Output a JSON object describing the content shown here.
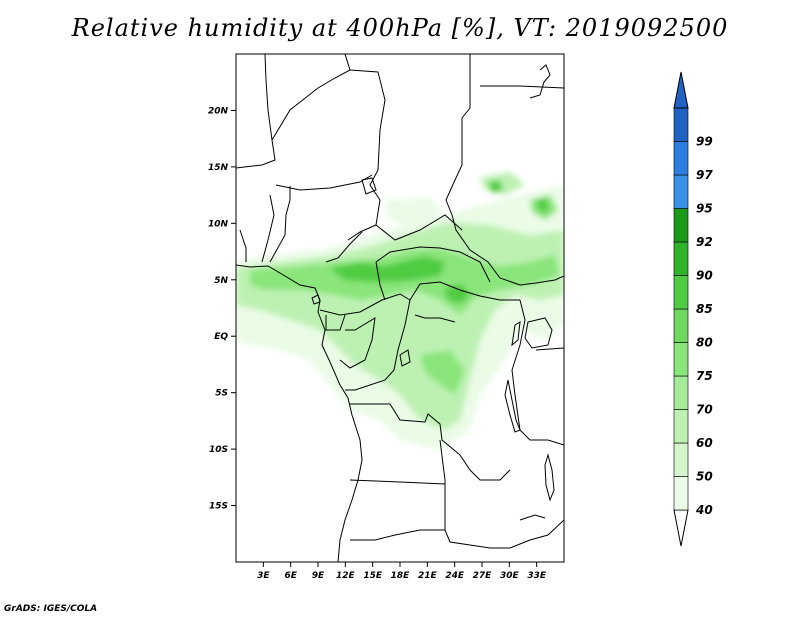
{
  "title": "Relative humidity at 400hPa [%], VT: 2019092500",
  "credit": "GrADS: IGES/COLA",
  "map": {
    "lon_range": [
      0,
      36
    ],
    "lat_range": [
      -20,
      25
    ],
    "lat_ticks": [
      {
        "value": 20,
        "label": "20N"
      },
      {
        "value": 15,
        "label": "15N"
      },
      {
        "value": 10,
        "label": "10N"
      },
      {
        "value": 5,
        "label": "5N"
      },
      {
        "value": 0,
        "label": "EQ"
      },
      {
        "value": -5,
        "label": "5S"
      },
      {
        "value": -10,
        "label": "10S"
      },
      {
        "value": -15,
        "label": "15S"
      }
    ],
    "lon_ticks": [
      {
        "value": 3,
        "label": "3E"
      },
      {
        "value": 6,
        "label": "6E"
      },
      {
        "value": 9,
        "label": "9E"
      },
      {
        "value": 12,
        "label": "12E"
      },
      {
        "value": 15,
        "label": "15E"
      },
      {
        "value": 18,
        "label": "18E"
      },
      {
        "value": 21,
        "label": "21E"
      },
      {
        "value": 24,
        "label": "24E"
      },
      {
        "value": 27,
        "label": "27E"
      },
      {
        "value": 30,
        "label": "30E"
      },
      {
        "value": 33,
        "label": "33E"
      }
    ]
  },
  "colorbar": {
    "levels": [
      {
        "label": "40",
        "color": "#eafbe6"
      },
      {
        "label": "50",
        "color": "#d4f6cc"
      },
      {
        "label": "60",
        "color": "#bdf1b2"
      },
      {
        "label": "70",
        "color": "#a6ec98"
      },
      {
        "label": "75",
        "color": "#8ae57a"
      },
      {
        "label": "80",
        "color": "#6ed85e"
      },
      {
        "label": "85",
        "color": "#4fcc42"
      },
      {
        "label": "90",
        "color": "#30b52a"
      },
      {
        "label": "92",
        "color": "#1a9a17"
      },
      {
        "label": "95",
        "color": "#3a93e8"
      },
      {
        "label": "97",
        "color": "#2b7de0"
      },
      {
        "label": "99",
        "color": "#1f62c4"
      }
    ],
    "below_color": "#ffffff",
    "above_color": "#1f62c4"
  }
}
